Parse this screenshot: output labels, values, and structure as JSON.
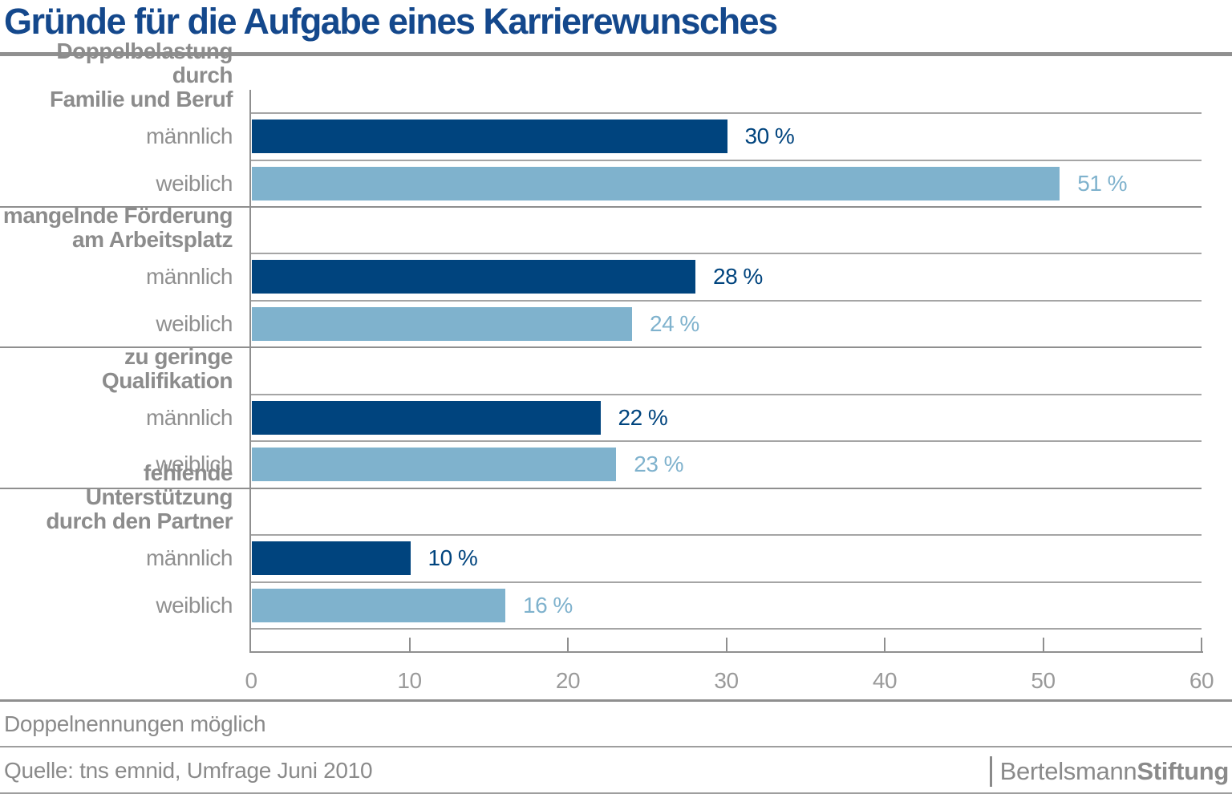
{
  "title": "Gründe für die Aufgabe eines Karrierewunsches",
  "colors": {
    "male_bar": "#00447e",
    "female_bar": "#7fb2cd",
    "title_text": "#14488c",
    "label_gray": "#8c8c8c",
    "tick_gray": "#9a9a9a"
  },
  "chart_data": {
    "type": "bar",
    "orientation": "horizontal",
    "title": "Gründe für die Aufgabe eines Karrierewunsches",
    "categories": [
      "Doppelbelastung durch Familie und Beruf",
      "mangelnde Förderung am Arbeitsplatz",
      "zu geringe Qualifikation",
      "fehlende Unterstützung durch den Partner"
    ],
    "series": [
      {
        "name": "männlich",
        "color": "#00447e",
        "values": [
          30,
          28,
          22,
          10
        ]
      },
      {
        "name": "weiblich",
        "color": "#7fb2cd",
        "values": [
          51,
          24,
          23,
          16
        ]
      }
    ],
    "value_suffix": " %",
    "xlabel": "",
    "ylabel": "",
    "xlim": [
      0,
      60
    ],
    "xticks": [
      0,
      10,
      20,
      30,
      40,
      50,
      60
    ],
    "grid": true,
    "legend_position": "none"
  },
  "groups": [
    {
      "label_lines": [
        "Doppelbelastung durch",
        "Familie und Beruf"
      ],
      "rows": [
        {
          "label": "männlich",
          "series": "male",
          "value": 30,
          "display": "30 %"
        },
        {
          "label": "weiblich",
          "series": "female",
          "value": 51,
          "display": "51 %"
        }
      ]
    },
    {
      "label_lines": [
        "mangelnde Förderung",
        "am Arbeitsplatz"
      ],
      "rows": [
        {
          "label": "männlich",
          "series": "male",
          "value": 28,
          "display": "28 %"
        },
        {
          "label": "weiblich",
          "series": "female",
          "value": 24,
          "display": "24 %"
        }
      ]
    },
    {
      "label_lines": [
        "zu geringe",
        "Qualifikation"
      ],
      "rows": [
        {
          "label": "männlich",
          "series": "male",
          "value": 22,
          "display": "22 %"
        },
        {
          "label": "weiblich",
          "series": "female",
          "value": 23,
          "display": "23 %"
        }
      ]
    },
    {
      "label_lines": [
        "fehlende Unterstützung",
        "durch den Partner"
      ],
      "rows": [
        {
          "label": "männlich",
          "series": "male",
          "value": 10,
          "display": "10 %"
        },
        {
          "label": "weiblich",
          "series": "female",
          "value": 16,
          "display": "16 %"
        }
      ]
    }
  ],
  "axis": {
    "tick_labels": [
      "0",
      "10",
      "20",
      "30",
      "40",
      "50",
      "60"
    ]
  },
  "footer": {
    "note": "Doppelnennungen möglich",
    "source": "Quelle: tns emnid, Umfrage Juni 2010",
    "logo": {
      "regular": "Bertelsmann",
      "bold": "Stiftung"
    }
  }
}
